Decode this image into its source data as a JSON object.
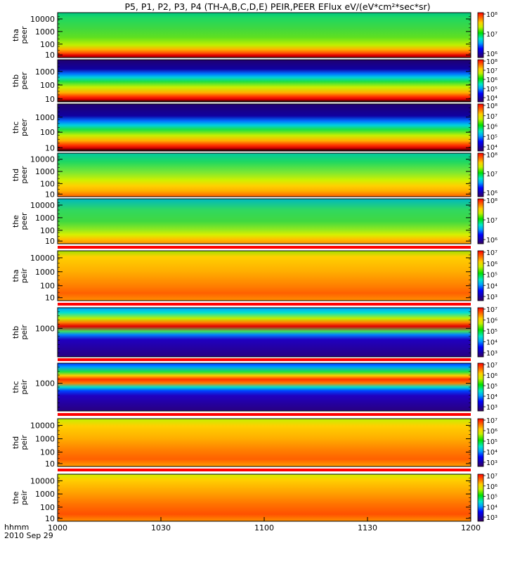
{
  "title": "P5, P1, P2, P3, P4 (TH-A,B,C,D,E) PEIR,PEER EFlux eV/(eV*cm²*sec*sr)",
  "chart_data": {
    "type": "heatmap",
    "title": "P5, P1, P2, P3, P4 (TH-A,B,C,D,E) PEIR,PEER EFlux eV/(eV*cm²*sec*sr)",
    "x_axis": {
      "date": "2010 Sep 29",
      "time_label": "hhmm",
      "range": [
        "1000",
        "1200"
      ],
      "ticks": [
        "1000",
        "1030",
        "1100",
        "1130",
        "1200"
      ]
    },
    "panels": [
      {
        "name": "tha peer",
        "probe": "tha",
        "species": "peer",
        "yticks": [
          "10000",
          "1000",
          "100",
          "10"
        ],
        "colorbar": {
          "scale": "log",
          "ticks": [
            "10⁸",
            "10⁷",
            "10⁶"
          ],
          "range": [
            5.0,
            8.0
          ]
        }
      },
      {
        "name": "thb peer",
        "probe": "thb",
        "species": "peer",
        "yticks": [
          "1000",
          "100",
          "10"
        ],
        "colorbar": {
          "scale": "log",
          "ticks": [
            "10⁸",
            "10⁷",
            "10⁶",
            "10⁵",
            "10⁴"
          ],
          "range": [
            3.6,
            8.0
          ]
        }
      },
      {
        "name": "thc peer",
        "probe": "thc",
        "species": "peer",
        "yticks": [
          "1000",
          "100",
          "10"
        ],
        "colorbar": {
          "scale": "log",
          "ticks": [
            "10⁸",
            "10⁷",
            "10⁶",
            "10⁵",
            "10⁴"
          ],
          "range": [
            3.6,
            8.0
          ]
        }
      },
      {
        "name": "thd peer",
        "probe": "thd",
        "species": "peer",
        "yticks": [
          "10000",
          "1000",
          "100",
          "10"
        ],
        "colorbar": {
          "scale": "log",
          "ticks": [
            "10⁸",
            "10⁷",
            "10⁶"
          ],
          "range": [
            5.7,
            8.0
          ]
        }
      },
      {
        "name": "the peer",
        "probe": "the",
        "species": "peer",
        "yticks": [
          "10000",
          "1000",
          "100",
          "10"
        ],
        "colorbar": {
          "scale": "log",
          "ticks": [
            "10⁸",
            "10⁷",
            "10⁶"
          ],
          "range": [
            5.3,
            8.0
          ]
        }
      },
      {
        "name": "tha peir",
        "probe": "tha",
        "species": "peir",
        "yticks": [
          "10000",
          "1000",
          "100",
          "10"
        ],
        "colorbar": {
          "scale": "log",
          "ticks": [
            "10⁷",
            "10⁶",
            "10⁵",
            "10⁴",
            "10³"
          ],
          "range": [
            2.8,
            7.0
          ]
        }
      },
      {
        "name": "thb peir",
        "probe": "thb",
        "species": "peir",
        "yticks": [
          "1000"
        ],
        "colorbar": {
          "scale": "log",
          "ticks": [
            "10⁷",
            "10⁶",
            "10⁵",
            "10⁴",
            "10³"
          ],
          "range": [
            2.8,
            7.0
          ]
        }
      },
      {
        "name": "thc peir",
        "probe": "thc",
        "species": "peir",
        "yticks": [
          "1000"
        ],
        "colorbar": {
          "scale": "log",
          "ticks": [
            "10⁷",
            "10⁶",
            "10⁵",
            "10⁴",
            "10³"
          ],
          "range": [
            2.8,
            7.0
          ]
        }
      },
      {
        "name": "thd peir",
        "probe": "thd",
        "species": "peir",
        "yticks": [
          "10000",
          "1000",
          "100",
          "10"
        ],
        "colorbar": {
          "scale": "log",
          "ticks": [
            "10⁷",
            "10⁶",
            "10⁵",
            "10⁴",
            "10³"
          ],
          "range": [
            2.8,
            7.0
          ]
        }
      },
      {
        "name": "the peir",
        "probe": "the",
        "species": "peir",
        "yticks": [
          "10000",
          "1000",
          "100",
          "10"
        ],
        "colorbar": {
          "scale": "log",
          "ticks": [
            "10⁷",
            "10⁶",
            "10⁵",
            "10⁴",
            "10³"
          ],
          "range": [
            2.8,
            7.0
          ]
        }
      }
    ]
  }
}
